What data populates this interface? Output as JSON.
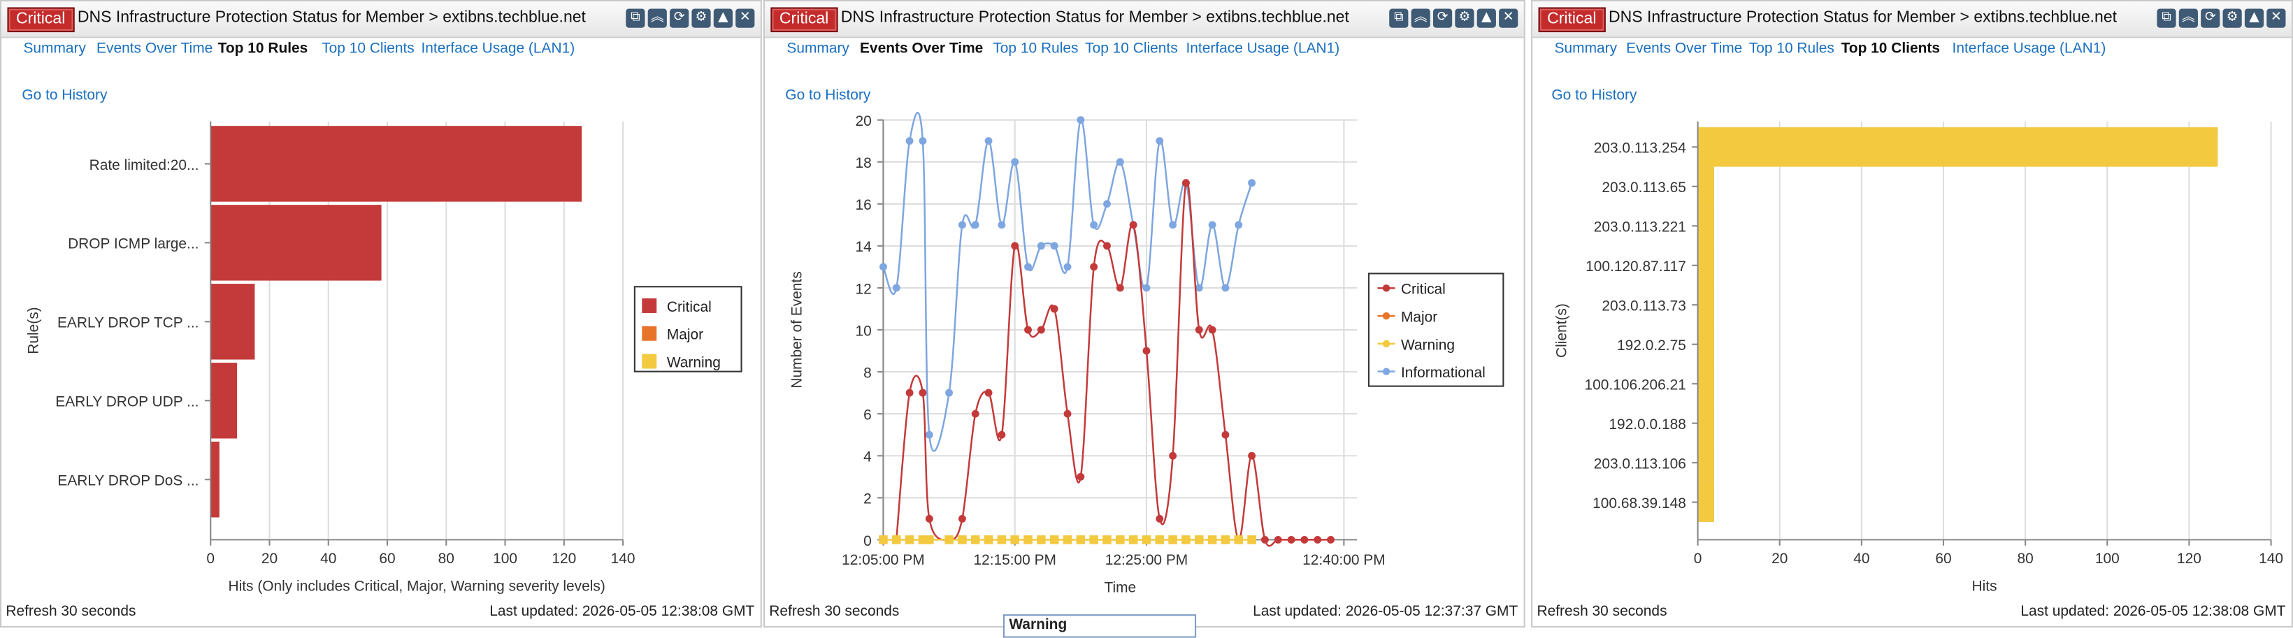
{
  "panels": [
    {
      "badge": "Critical",
      "title": "DNS Infrastructure Protection Status for Member > extibns.techblue.net",
      "tabs": [
        "Summary",
        "Events Over Time",
        "Top 10 Rules",
        "Top 10 Clients",
        "Interface Usage (LAN1)"
      ],
      "active_tab": "Top 10 Rules",
      "history_link": "Go to History",
      "refresh": "Refresh 30 seconds",
      "last_updated": "Last updated: 2026-05-05 12:38:08 GMT"
    },
    {
      "badge": "Critical",
      "title": "DNS Infrastructure Protection Status for Member > extibns.techblue.net",
      "tabs": [
        "Summary",
        "Events Over Time",
        "Top 10 Rules",
        "Top 10 Clients",
        "Interface Usage (LAN1)"
      ],
      "active_tab": "Events Over Time",
      "history_link": "Go to History",
      "refresh": "Refresh 30 seconds",
      "last_updated": "Last updated: 2026-05-05 12:37:37 GMT",
      "tooltip": "Warning"
    },
    {
      "badge": "Critical",
      "title": "DNS Infrastructure Protection Status for Member > extibns.techblue.net",
      "tabs": [
        "Summary",
        "Events Over Time",
        "Top 10 Rules",
        "Top 10 Clients",
        "Interface Usage (LAN1)"
      ],
      "active_tab": "Top 10 Clients",
      "history_link": "Go to History",
      "refresh": "Refresh 30 seconds",
      "last_updated": "Last updated: 2026-05-05 12:38:08 GMT"
    }
  ],
  "icons": [
    "maximize-icon",
    "collapse-icon",
    "refresh-icon",
    "settings-icon",
    "minimize-icon",
    "close-icon"
  ],
  "colors": {
    "critical": "#c43a3a",
    "major": "#e8742a",
    "warning": "#f2c93f",
    "informational": "#7ea6e0",
    "link": "#1a6fbf"
  },
  "chart_data": [
    {
      "type": "bar",
      "orientation": "horizontal",
      "categories": [
        "Rate limited:20...",
        "DROP ICMP large...",
        "EARLY DROP TCP ...",
        "EARLY DROP UDP ...",
        "EARLY DROP DoS ..."
      ],
      "series": [
        {
          "name": "Critical",
          "values": [
            126,
            58,
            15,
            9,
            3
          ]
        },
        {
          "name": "Major",
          "values": [
            0,
            0,
            0,
            0,
            0
          ]
        },
        {
          "name": "Warning",
          "values": [
            0,
            0,
            0,
            0,
            0
          ]
        }
      ],
      "xlabel": "Hits (Only includes Critical, Major, Warning severity levels)",
      "ylabel": "Rule(s)",
      "xlim": [
        0,
        140
      ],
      "xticks": [
        0,
        20,
        40,
        60,
        80,
        100,
        120,
        140
      ],
      "legend": "right"
    },
    {
      "type": "line",
      "x_labels": [
        "12:05:00 PM",
        "12:15:00 PM",
        "12:25:00 PM",
        "12:40:00 PM"
      ],
      "xticks_minutes": [
        0,
        10,
        20,
        35
      ],
      "xlim_minutes": [
        0,
        36
      ],
      "x_minutes": [
        0,
        1,
        2,
        3,
        3.5,
        5,
        6,
        7,
        8,
        9,
        10,
        11,
        12,
        13,
        14,
        15,
        16,
        17,
        18,
        19,
        20,
        21,
        22,
        23,
        24,
        25,
        26,
        27,
        28,
        29,
        30,
        31,
        32,
        33,
        34
      ],
      "series": [
        {
          "name": "Critical",
          "x_minutes": [
            1,
            2,
            3,
            3.5,
            5,
            6,
            7,
            8,
            9,
            10,
            11,
            12,
            13,
            14,
            15,
            16,
            17,
            18,
            19,
            20,
            21,
            22,
            23,
            24,
            25,
            26,
            27,
            28,
            29,
            30,
            31,
            32,
            33,
            34
          ],
          "values": [
            0,
            7,
            7,
            1,
            0,
            1,
            6,
            7,
            5,
            14,
            10,
            10,
            11,
            6,
            3,
            13,
            14,
            12,
            15,
            9,
            1,
            4,
            17,
            10,
            10,
            5,
            0,
            4,
            0,
            0,
            0,
            0,
            0,
            0
          ]
        },
        {
          "name": "Major",
          "values": []
        },
        {
          "name": "Warning",
          "x_minutes": [
            0,
            1,
            2,
            3,
            3.5,
            5,
            6,
            7,
            8,
            9,
            10,
            11,
            12,
            13,
            14,
            15,
            16,
            17,
            18,
            19,
            20,
            21,
            22,
            23,
            24,
            25,
            26,
            27,
            28
          ],
          "values": [
            0,
            0,
            0,
            0,
            0,
            0,
            0,
            0,
            0,
            0,
            0,
            0,
            0,
            0,
            0,
            0,
            0,
            0,
            0,
            0,
            0,
            0,
            0,
            0,
            0,
            0,
            0,
            0,
            0
          ]
        },
        {
          "name": "Informational",
          "x_minutes": [
            0,
            1,
            2,
            3,
            3.5,
            5,
            6,
            7,
            8,
            9,
            10,
            11,
            12,
            13,
            14,
            15,
            16,
            17,
            18,
            19,
            20,
            21,
            22,
            23,
            24,
            25,
            26,
            27,
            28
          ],
          "values": [
            13,
            12,
            19,
            19,
            5,
            7,
            15,
            15,
            19,
            15,
            18,
            13,
            14,
            14,
            13,
            20,
            15,
            16,
            18,
            15,
            12,
            19,
            15,
            17,
            12,
            15,
            12,
            15,
            17
          ]
        }
      ],
      "xlabel": "Time",
      "ylabel": "Number of Events",
      "ylim": [
        0,
        20
      ],
      "yticks": [
        0,
        2,
        4,
        6,
        8,
        10,
        12,
        14,
        16,
        18,
        20
      ],
      "legend": "right"
    },
    {
      "type": "bar",
      "orientation": "horizontal",
      "categories": [
        "203.0.113.254",
        "203.0.113.65",
        "203.0.113.221",
        "100.120.87.117",
        "203.0.113.73",
        "192.0.2.75",
        "100.106.206.21",
        "192.0.0.188",
        "203.0.113.106",
        "100.68.39.148"
      ],
      "series": [
        {
          "name": "Warning",
          "values": [
            127,
            4,
            4,
            4,
            4,
            4,
            4,
            4,
            4,
            4
          ]
        }
      ],
      "xlabel": "Hits",
      "ylabel": "Client(s)",
      "xlim": [
        0,
        140
      ],
      "xticks": [
        0,
        20,
        40,
        60,
        80,
        100,
        120,
        140
      ]
    }
  ]
}
